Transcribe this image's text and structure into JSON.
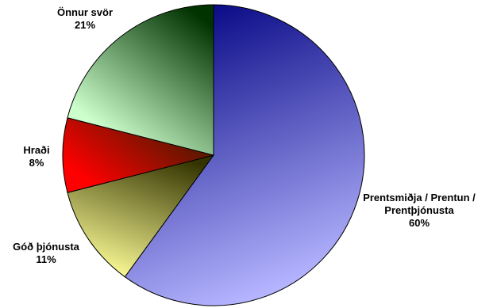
{
  "chart_data": {
    "type": "pie",
    "start_angle_deg": 0,
    "direction": "clockwise",
    "slices": [
      {
        "label_lines": [
          "Prentsmiðja / Prentun /",
          "Prentþjónusta"
        ],
        "percent_label": "60%",
        "value": 60,
        "color_start": "#000080",
        "color_end": "#b4b4ff"
      },
      {
        "label_lines": [
          "Góð þjónusta"
        ],
        "percent_label": "11%",
        "value": 11,
        "color_start": "#ffff99",
        "color_end": "#333300"
      },
      {
        "label_lines": [
          "Hraði"
        ],
        "percent_label": "8%",
        "value": 8,
        "color_start": "#ff0000",
        "color_end": "#4d1a00"
      },
      {
        "label_lines": [
          "Önnur svör"
        ],
        "percent_label": "21%",
        "value": 21,
        "color_start": "#ccffcc",
        "color_end": "#003300"
      }
    ]
  }
}
